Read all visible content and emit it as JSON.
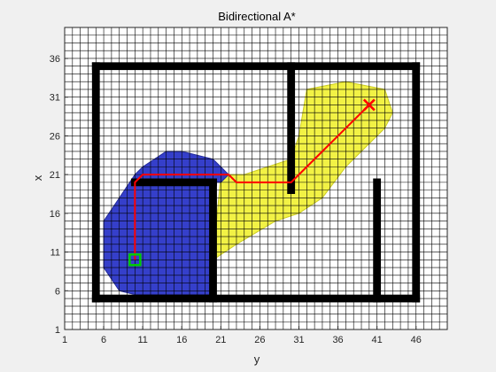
{
  "chart_data": {
    "type": "scatter",
    "title": "Bidirectional A*",
    "xlabel": "y",
    "ylabel": "x",
    "xlim": [
      1,
      50
    ],
    "ylim": [
      1,
      40
    ],
    "xticks": [
      1,
      6,
      11,
      16,
      21,
      26,
      31,
      36,
      41,
      46
    ],
    "yticks": [
      1,
      6,
      11,
      16,
      21,
      26,
      31,
      36
    ],
    "grid": true,
    "colors": {
      "background": "#f0f0f0",
      "plot_bg": "#ffffff",
      "grid": "#000000",
      "obstacle": "#000000",
      "forward_search": "#2b35c8",
      "backward_search": "#f2f23c",
      "path": "#ff0000",
      "start": "#00cc00",
      "goal": "#ff0000"
    },
    "walls": [
      {
        "x": [
          5,
          46
        ],
        "y": [
          5,
          5
        ]
      },
      {
        "x": [
          5,
          46
        ],
        "y": [
          35,
          35
        ]
      },
      {
        "x": [
          5,
          5
        ],
        "y": [
          5,
          35
        ]
      },
      {
        "x": [
          46,
          46
        ],
        "y": [
          5,
          35
        ]
      },
      {
        "x": [
          20,
          20
        ],
        "y": [
          5,
          20
        ]
      },
      {
        "x": [
          10,
          20
        ],
        "y": [
          20,
          20
        ]
      },
      {
        "x": [
          30,
          30
        ],
        "y": [
          19,
          35
        ]
      },
      {
        "x": [
          41,
          41
        ],
        "y": [
          5,
          20
        ]
      }
    ],
    "forward_search": {
      "name": "",
      "region": [
        [
          10,
          5.5
        ],
        [
          20,
          5.5
        ],
        [
          20,
          20
        ],
        [
          21,
          20
        ],
        [
          22,
          21
        ],
        [
          20,
          23
        ],
        [
          16,
          24
        ],
        [
          14,
          24
        ],
        [
          11,
          22
        ],
        [
          10,
          21
        ],
        [
          8,
          18
        ],
        [
          6,
          15
        ],
        [
          6,
          9
        ],
        [
          8,
          6
        ]
      ]
    },
    "backward_search": {
      "name": "",
      "region": [
        [
          20,
          10
        ],
        [
          23,
          12
        ],
        [
          28,
          15
        ],
        [
          31,
          16
        ],
        [
          34,
          18
        ],
        [
          37,
          22
        ],
        [
          42,
          27
        ],
        [
          43,
          29
        ],
        [
          42,
          32
        ],
        [
          37,
          33
        ],
        [
          32,
          32
        ],
        [
          31,
          26
        ],
        [
          30,
          23
        ],
        [
          27,
          22
        ],
        [
          24,
          21
        ],
        [
          21,
          21
        ]
      ]
    },
    "path": {
      "name": "",
      "x": [
        10,
        10,
        10,
        11,
        20,
        22,
        23,
        30,
        31,
        34,
        37,
        40
      ],
      "y": [
        10,
        17,
        20,
        21,
        21,
        21,
        20,
        20,
        21,
        24,
        27,
        30
      ]
    },
    "start": {
      "x": 10,
      "y": 10
    },
    "goal": {
      "x": 40,
      "y": 30
    }
  }
}
